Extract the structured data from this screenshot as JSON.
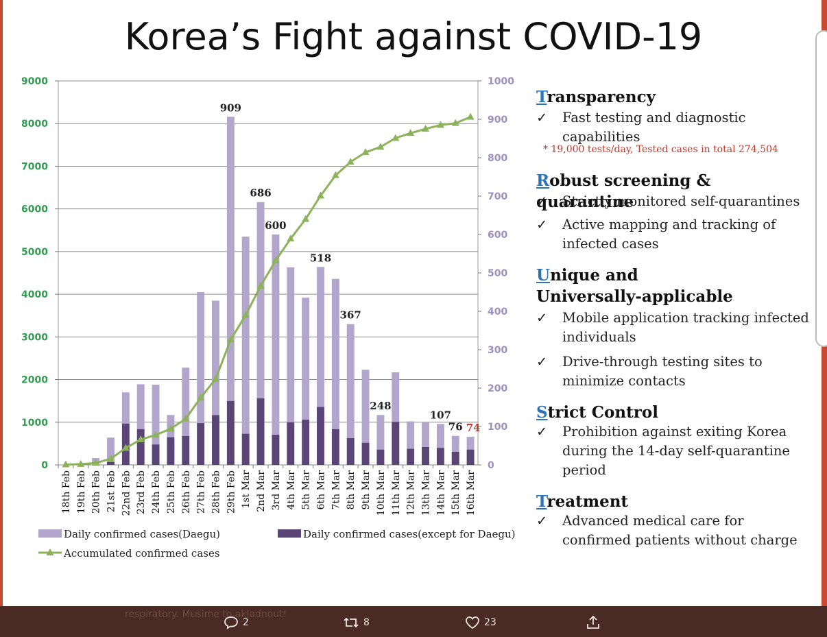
{
  "title": "Korea’s Fight against COVID-19",
  "chart_data": {
    "type": "bar",
    "categories": [
      "18th Feb",
      "19th Feb",
      "20th Feb",
      "21st Feb",
      "22nd Feb",
      "23rd Feb",
      "24th Feb",
      "25th Feb",
      "26th Feb",
      "27th Feb",
      "28th Feb",
      "29th Feb",
      "1st Mar",
      "2nd Mar",
      "3rd Mar",
      "4th Mar",
      "5th Mar",
      "6th Mar",
      "7th Mar",
      "8th Mar",
      "9th Mar",
      "10th Mar",
      "11th Mar",
      "12th Mar",
      "13th Mar",
      "14th Mar",
      "15th Mar",
      "16th Mar"
    ],
    "series": [
      {
        "name": "Daily confirmed cases(Daegu)",
        "axis": "left",
        "stack": "bar",
        "color": "#b3a6cd",
        "values": [
          0,
          40,
          160,
          570,
          730,
          1050,
          1400,
          520,
          1600,
          3070,
          2680,
          6660,
          4620,
          4600,
          4690,
          3630,
          2860,
          3280,
          3520,
          2670,
          1710,
          810,
          1160,
          640,
          570,
          560,
          370,
          300
        ]
      },
      {
        "name": "Daily confirmed cases(except for Daegu)",
        "axis": "left",
        "stack": "bar",
        "color": "#5a4577",
        "values": [
          0,
          0,
          0,
          70,
          970,
          840,
          480,
          650,
          680,
          980,
          1170,
          1500,
          730,
          1560,
          710,
          1000,
          1060,
          1360,
          840,
          630,
          520,
          360,
          1010,
          380,
          420,
          400,
          310,
          360
        ]
      },
      {
        "name": "Accumulated confirmed cases",
        "axis": "right",
        "type": "line",
        "color": "#8db35a",
        "values": [
          1,
          2,
          5,
          16,
          44,
          66,
          78,
          94,
          120,
          175,
          224,
          326,
          390,
          466,
          532,
          589,
          640,
          701,
          754,
          789,
          814,
          828,
          851,
          864,
          875,
          885,
          890,
          906
        ]
      }
    ],
    "data_labels": [
      {
        "category": "29th Feb",
        "label": "909"
      },
      {
        "category": "2nd Mar",
        "label": "686"
      },
      {
        "category": "3rd Mar",
        "label": "600"
      },
      {
        "category": "6th Mar",
        "label": "518"
      },
      {
        "category": "8th Mar",
        "label": "367"
      },
      {
        "category": "10th Mar",
        "label": "248"
      },
      {
        "category": "14th Mar",
        "label": "107"
      },
      {
        "category": "15th Mar",
        "label": "76"
      },
      {
        "category": "16th Mar",
        "label": "74",
        "color": "#c0392b"
      }
    ],
    "y_left": {
      "ticks": [
        "0",
        "1000",
        "2000",
        "3000",
        "4000",
        "5000",
        "6000",
        "7000",
        "8000",
        "9000"
      ],
      "ylim": [
        0,
        9000
      ],
      "color": "#2e9e4f"
    },
    "y_right": {
      "ticks": [
        "0",
        "100",
        "200",
        "300",
        "400",
        "500",
        "600",
        "700",
        "800",
        "900",
        "1000"
      ],
      "ylim": [
        0,
        1000
      ],
      "color": "#9b8fc0"
    },
    "grid": true,
    "legend_position": "bottom",
    "legend": [
      {
        "label": "Daily confirmed cases(Daegu)",
        "color": "#b3a6cd",
        "kind": "bar"
      },
      {
        "label": "Daily confirmed cases(except for Daegu)",
        "color": "#5a4577",
        "kind": "bar"
      },
      {
        "label": "Accumulated confirmed cases",
        "color": "#8db35a",
        "kind": "line"
      }
    ]
  },
  "panel": {
    "sections": [
      {
        "cap": "T",
        "rest": "ransparency",
        "items": [
          "Fast testing and diagnostic capabilities"
        ],
        "note": "* 19,000 tests/day,  Tested cases in total 274,504"
      },
      {
        "cap": "R",
        "rest": "obust screening & quarantine",
        "items": [
          "Strictly monitored self-quarantines",
          "Active mapping and tracking of infected cases"
        ]
      },
      {
        "cap": "U",
        "rest": "nique and Universally-applicable",
        "items": [
          "Mobile application tracking infected individuals",
          "Drive-through testing sites to minimize contacts"
        ]
      },
      {
        "cap": "S",
        "rest": "trict Control",
        "items": [
          "Prohibition against exiting Korea during the 14-day self-quarantine period"
        ]
      },
      {
        "cap": "T",
        "rest": "reatment",
        "items": [
          "Advanced medical care for confirmed patients without charge"
        ]
      }
    ],
    "check": "✓"
  },
  "footer": {
    "ghost_text": "respiratory. Musime to akladnout!",
    "reply_count": "2",
    "retweet_count": "8",
    "like_count": "23"
  }
}
